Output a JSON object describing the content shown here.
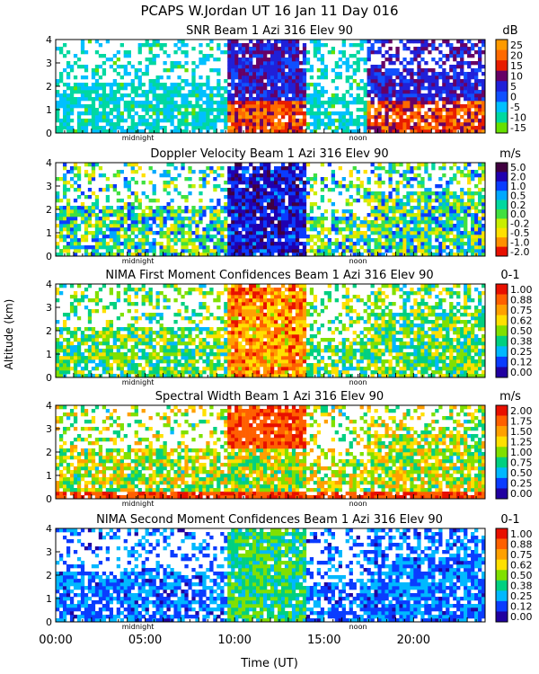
{
  "header": {
    "title": "PCAPS W.Jordan UT  16 Jan 11 Day 016"
  },
  "figure": {
    "ylabel": "Altitude (km)",
    "xlabel": "Time (UT)",
    "x_ticks": [
      "00:00",
      "05:00",
      "10:00",
      "15:00",
      "20:00"
    ],
    "x_tick_hours": [
      0,
      5,
      10,
      15,
      20
    ],
    "xlim_hours": [
      0,
      24
    ],
    "midnight_label": "midnight",
    "noon_label": "noon",
    "midnight_hour": 4.6,
    "noon_hour": 16.9
  },
  "chart_data": [
    {
      "type": "heatmap",
      "title": "SNR Beam 1 Azi 316 Elev 90",
      "units": "dB",
      "ylim": [
        0,
        4
      ],
      "y_ticks": [
        "0",
        "1",
        "2",
        "3",
        "4"
      ],
      "y_tick_values": [
        0,
        1,
        2,
        3,
        4
      ],
      "colorbar_labels": [
        "25",
        "20",
        "15",
        "10",
        "5",
        "0",
        "-5",
        "-10",
        "-15"
      ],
      "colorbar_colors": [
        "#ff9a00",
        "#ff6a00",
        "#e81d00",
        "#660066",
        "#2020d8",
        "#1050ff",
        "#00c0ff",
        "#00d8a0",
        "#66e000"
      ]
    },
    {
      "type": "heatmap",
      "title": "Doppler Velocity Beam 1 Azi 316 Elev 90",
      "units": "m/s",
      "ylim": [
        0,
        4
      ],
      "y_ticks": [
        "0",
        "1",
        "2",
        "3",
        "4"
      ],
      "y_tick_values": [
        0,
        1,
        2,
        3,
        4
      ],
      "colorbar_labels": [
        "5.0",
        "2.0",
        "1.0",
        "0.5",
        "0.2",
        "0.0",
        "-0.2",
        "-0.5",
        "-1.0",
        "-2.0"
      ],
      "colorbar_colors": [
        "#400040",
        "#2000b0",
        "#0a3cff",
        "#00a8ff",
        "#00d8a0",
        "#40e040",
        "#c8ee00",
        "#ffe000",
        "#ff9000",
        "#e81000"
      ]
    },
    {
      "type": "heatmap",
      "title": "NIMA First Moment Confidences Beam 1 Azi 316 Elev 90",
      "units": "0-1",
      "ylim": [
        0,
        4
      ],
      "y_ticks": [
        "0",
        "1",
        "2",
        "3",
        "4"
      ],
      "y_tick_values": [
        0,
        1,
        2,
        3,
        4
      ],
      "colorbar_labels": [
        "1.00",
        "0.88",
        "0.75",
        "0.62",
        "0.50",
        "0.38",
        "0.25",
        "0.12",
        "0.00"
      ],
      "colorbar_colors": [
        "#e81000",
        "#ff6000",
        "#ffa000",
        "#ffe000",
        "#80e000",
        "#00d080",
        "#00b8ff",
        "#0a3cff",
        "#2000a0"
      ]
    },
    {
      "type": "heatmap",
      "title": "Spectral Width Beam 1 Azi 316 Elev 90",
      "units": "m/s",
      "ylim": [
        0,
        4
      ],
      "y_ticks": [
        "0",
        "1",
        "2",
        "3",
        "4"
      ],
      "y_tick_values": [
        0,
        1,
        2,
        3,
        4
      ],
      "colorbar_labels": [
        "2.00",
        "1.75",
        "1.50",
        "1.25",
        "1.00",
        "0.75",
        "0.50",
        "0.25",
        "0.00"
      ],
      "colorbar_colors": [
        "#e81000",
        "#ff6000",
        "#ffa000",
        "#ffe000",
        "#80e000",
        "#00d080",
        "#00b8ff",
        "#0a3cff",
        "#2000a0"
      ]
    },
    {
      "type": "heatmap",
      "title": "NIMA Second Moment Confidences Beam 1 Azi 316 Elev 90",
      "units": "0-1",
      "ylim": [
        0,
        4
      ],
      "y_ticks": [
        "0",
        "1",
        "2",
        "3",
        "4"
      ],
      "y_tick_values": [
        0,
        1,
        2,
        3,
        4
      ],
      "colorbar_labels": [
        "1.00",
        "0.88",
        "0.75",
        "0.62",
        "0.50",
        "0.38",
        "0.25",
        "0.12",
        "0.00"
      ],
      "colorbar_colors": [
        "#e81000",
        "#ff6000",
        "#ffa000",
        "#ffe000",
        "#80e000",
        "#00d080",
        "#00b8ff",
        "#0a3cff",
        "#2000a0"
      ]
    }
  ]
}
